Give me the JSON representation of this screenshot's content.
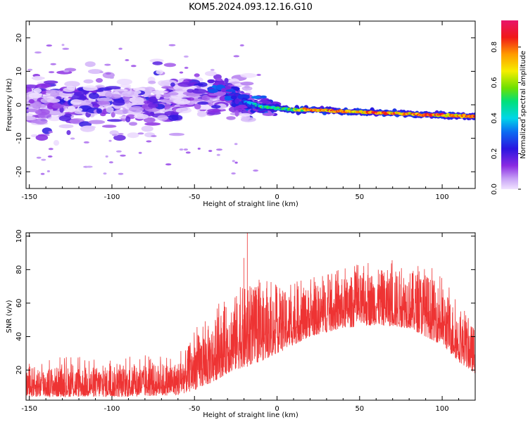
{
  "title": "KOM5.2024.093.12.16.G10",
  "chart_data": [
    {
      "type": "heatmap",
      "xlabel": "Height of straight line (km)",
      "ylabel": "Frequency (Hz)",
      "xlim": [
        -152,
        120
      ],
      "ylim": [
        -25,
        25
      ],
      "x_ticks": [
        -150,
        -100,
        -50,
        0,
        50,
        100
      ],
      "y_ticks": [
        -20,
        -10,
        0,
        10,
        20
      ],
      "colorbar": {
        "label": "Normalized spectral amplitude",
        "range": [
          0,
          0.95
        ],
        "ticks": [
          0.0,
          0.2,
          0.4,
          0.6,
          0.8
        ],
        "colormap": "rainbow (light violet → blue → cyan → green → yellow → orange → red → magenta)"
      },
      "features": {
        "description": "Scattered low-amplitude blobs between -150 and -20 km spread over about -20 to +17 Hz; a narrow high-amplitude trace from about -20 km to 120 km descending from about +2 Hz to about -3.5 Hz",
        "trace": [
          {
            "x": -35,
            "y": 5,
            "amp": 0.3
          },
          {
            "x": -20,
            "y": 1,
            "amp": 0.35
          },
          {
            "x": -10,
            "y": -0.5,
            "amp": 0.45
          },
          {
            "x": 0,
            "y": -1,
            "amp": 0.5
          },
          {
            "x": 10,
            "y": -1.5,
            "amp": 0.55
          },
          {
            "x": 20,
            "y": -1.5,
            "amp": 0.75
          },
          {
            "x": 30,
            "y": -1.7,
            "amp": 0.85
          },
          {
            "x": 40,
            "y": -2,
            "amp": 0.8
          },
          {
            "x": 50,
            "y": -2.1,
            "amp": 0.75
          },
          {
            "x": 60,
            "y": -2.4,
            "amp": 0.85
          },
          {
            "x": 70,
            "y": -2.5,
            "amp": 0.8
          },
          {
            "x": 80,
            "y": -2.7,
            "amp": 0.75
          },
          {
            "x": 90,
            "y": -3,
            "amp": 0.85
          },
          {
            "x": 100,
            "y": -3.1,
            "amp": 0.8
          },
          {
            "x": 110,
            "y": -3.3,
            "amp": 0.8
          },
          {
            "x": 120,
            "y": -3.5,
            "amp": 0.85
          }
        ]
      }
    },
    {
      "type": "line",
      "xlabel": "Height of straight line (km)",
      "ylabel": "SNR (v/v)",
      "xlim": [
        -152,
        120
      ],
      "ylim": [
        2,
        102
      ],
      "x_ticks": [
        -150,
        -100,
        -50,
        0,
        50,
        100
      ],
      "y_ticks": [
        20,
        40,
        60,
        80,
        100
      ],
      "series_color": "#ee3333",
      "envelope": {
        "x": [
          -152,
          -120,
          -90,
          -60,
          -50,
          -40,
          -30,
          -20,
          -10,
          0,
          20,
          40,
          60,
          80,
          90,
          100,
          110,
          120
        ],
        "low": [
          4,
          4,
          4,
          5,
          8,
          12,
          18,
          22,
          25,
          30,
          40,
          45,
          47,
          45,
          40,
          35,
          25,
          18
        ],
        "high": [
          22,
          22,
          22,
          25,
          40,
          48,
          60,
          70,
          68,
          66,
          70,
          75,
          80,
          80,
          78,
          70,
          55,
          45
        ]
      },
      "spikes": [
        {
          "x": -18,
          "y": 102
        },
        {
          "x": -20,
          "y": 87
        }
      ]
    }
  ]
}
